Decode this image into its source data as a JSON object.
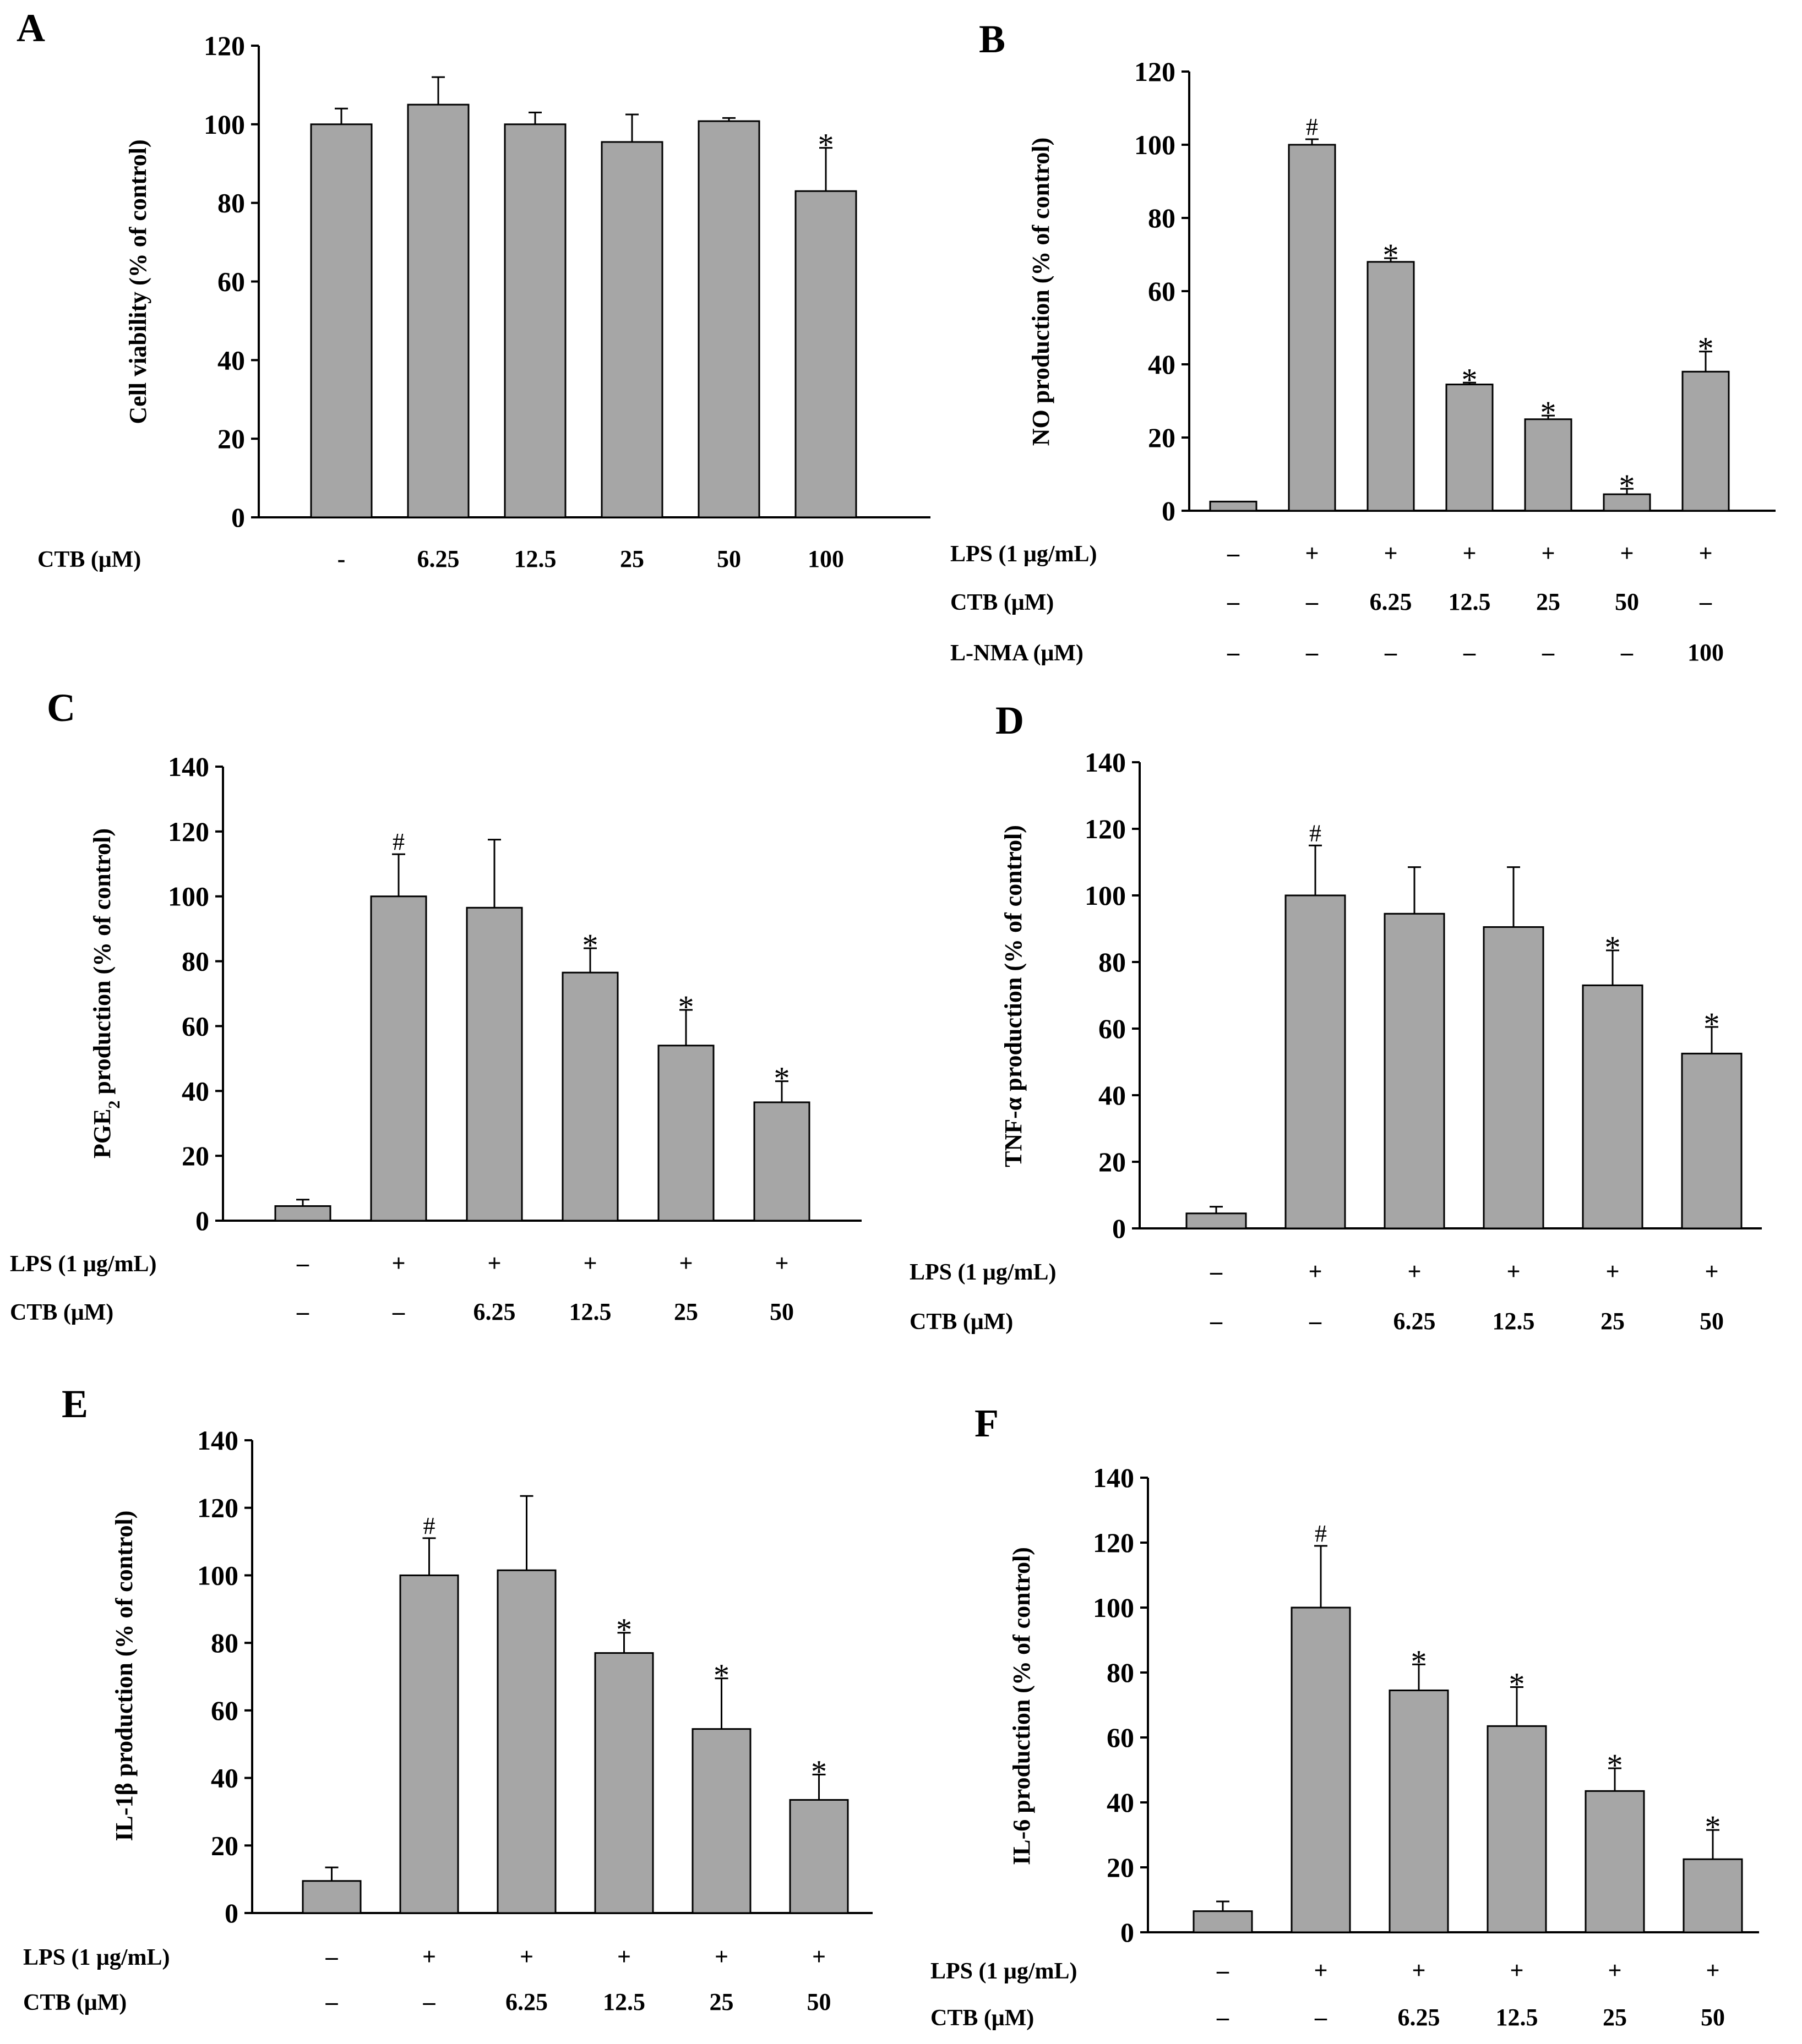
{
  "chart_data": [
    {
      "panel": "A",
      "type": "bar",
      "ylabel": "Cell viability (% of control)",
      "ylim": [
        0,
        120
      ],
      "yticks": [
        0,
        20,
        40,
        60,
        80,
        100,
        120
      ],
      "values": [
        100,
        105,
        100,
        95.5,
        100.8,
        83
      ],
      "errors": [
        4,
        7,
        3,
        7,
        0.8,
        11
      ],
      "annotations": [
        "",
        "",
        "",
        "",
        "",
        "*"
      ],
      "rows": [
        {
          "label": "CTB (μM)",
          "values": [
            "-",
            "6.25",
            "12.5",
            "25",
            "50",
            "100"
          ]
        }
      ]
    },
    {
      "panel": "B",
      "type": "bar",
      "ylabel": "NO production (% of control)",
      "ylim": [
        0,
        120
      ],
      "yticks": [
        0,
        20,
        40,
        60,
        80,
        100,
        120
      ],
      "values": [
        2.5,
        100,
        68,
        34.5,
        25,
        4.5,
        38
      ],
      "errors": [
        0,
        1.5,
        1,
        0.5,
        1,
        1.5,
        5.5
      ],
      "annotations": [
        "",
        "#",
        "*",
        "*",
        "*",
        "*",
        "*"
      ],
      "rows": [
        {
          "label": "LPS (1 μg/mL)",
          "values": [
            "–",
            "+",
            "+",
            "+",
            "+",
            "+",
            "+"
          ]
        },
        {
          "label": "CTB (μM)",
          "values": [
            "–",
            "–",
            "6.25",
            "12.5",
            "25",
            "50",
            "–"
          ]
        },
        {
          "label": "L-NMA (μM)",
          "values": [
            "–",
            "–",
            "–",
            "–",
            "–",
            "–",
            "100"
          ]
        }
      ]
    },
    {
      "panel": "C",
      "type": "bar",
      "ylabel": "PGE",
      "ylabel_sub": "2",
      "ylabel_rest": " production (% of control)",
      "ylim": [
        0,
        140
      ],
      "yticks": [
        0,
        20,
        40,
        60,
        80,
        100,
        120,
        140
      ],
      "values": [
        4.5,
        100,
        96.5,
        76.5,
        54,
        36.5
      ],
      "errors": [
        2,
        13,
        21,
        7.5,
        11,
        6.5
      ],
      "annotations": [
        "",
        "#",
        "",
        "*",
        "*",
        "*"
      ],
      "rows": [
        {
          "label": "LPS (1 μg/mL)",
          "values": [
            "–",
            "+",
            "+",
            "+",
            "+",
            "+"
          ]
        },
        {
          "label": "CTB (μM)",
          "values": [
            "–",
            "–",
            "6.25",
            "12.5",
            "25",
            "50"
          ]
        }
      ]
    },
    {
      "panel": "D",
      "type": "bar",
      "ylabel": "TNF-α production (% of control)",
      "ylim": [
        0,
        140
      ],
      "yticks": [
        0,
        20,
        40,
        60,
        80,
        100,
        120,
        140
      ],
      "values": [
        4.5,
        100,
        94.5,
        90.5,
        73,
        52.5
      ],
      "errors": [
        2,
        15,
        14,
        18,
        10.5,
        8
      ],
      "annotations": [
        "",
        "#",
        "",
        "",
        "*",
        "*"
      ],
      "rows": [
        {
          "label": "LPS (1 μg/mL)",
          "values": [
            "–",
            "+",
            "+",
            "+",
            "+",
            "+"
          ]
        },
        {
          "label": "CTB (μM)",
          "values": [
            "–",
            "–",
            "6.25",
            "12.5",
            "25",
            "50"
          ]
        }
      ]
    },
    {
      "panel": "E",
      "type": "bar",
      "ylabel": "IL-1β production (% of control)",
      "ylim": [
        0,
        140
      ],
      "yticks": [
        0,
        20,
        40,
        60,
        80,
        100,
        120,
        140
      ],
      "values": [
        9.5,
        100,
        101.5,
        77,
        54.5,
        33.5
      ],
      "errors": [
        4,
        11,
        22,
        6,
        15,
        7.5
      ],
      "annotations": [
        "",
        "#",
        "",
        "*",
        "*",
        "*"
      ],
      "rows": [
        {
          "label": "LPS (1 μg/mL)",
          "values": [
            "–",
            "+",
            "+",
            "+",
            "+",
            "+"
          ]
        },
        {
          "label": "CTB (μM)",
          "values": [
            "–",
            "–",
            "6.25",
            "12.5",
            "25",
            "50"
          ]
        }
      ]
    },
    {
      "panel": "F",
      "type": "bar",
      "ylabel": "IL-6 production (% of control)",
      "ylim": [
        0,
        140
      ],
      "yticks": [
        0,
        20,
        40,
        60,
        80,
        100,
        120,
        140
      ],
      "values": [
        6.5,
        100,
        74.5,
        63.5,
        43.5,
        22.5
      ],
      "errors": [
        3,
        19,
        8,
        12,
        7,
        9
      ],
      "annotations": [
        "",
        "#",
        "*",
        "*",
        "*",
        "*"
      ],
      "rows": [
        {
          "label": "LPS (1 μg/mL)",
          "values": [
            "–",
            "+",
            "+",
            "+",
            "+",
            "+"
          ]
        },
        {
          "label": "CTB (μM)",
          "values": [
            "–",
            "–",
            "6.25",
            "12.5",
            "25",
            "50"
          ]
        }
      ]
    }
  ]
}
